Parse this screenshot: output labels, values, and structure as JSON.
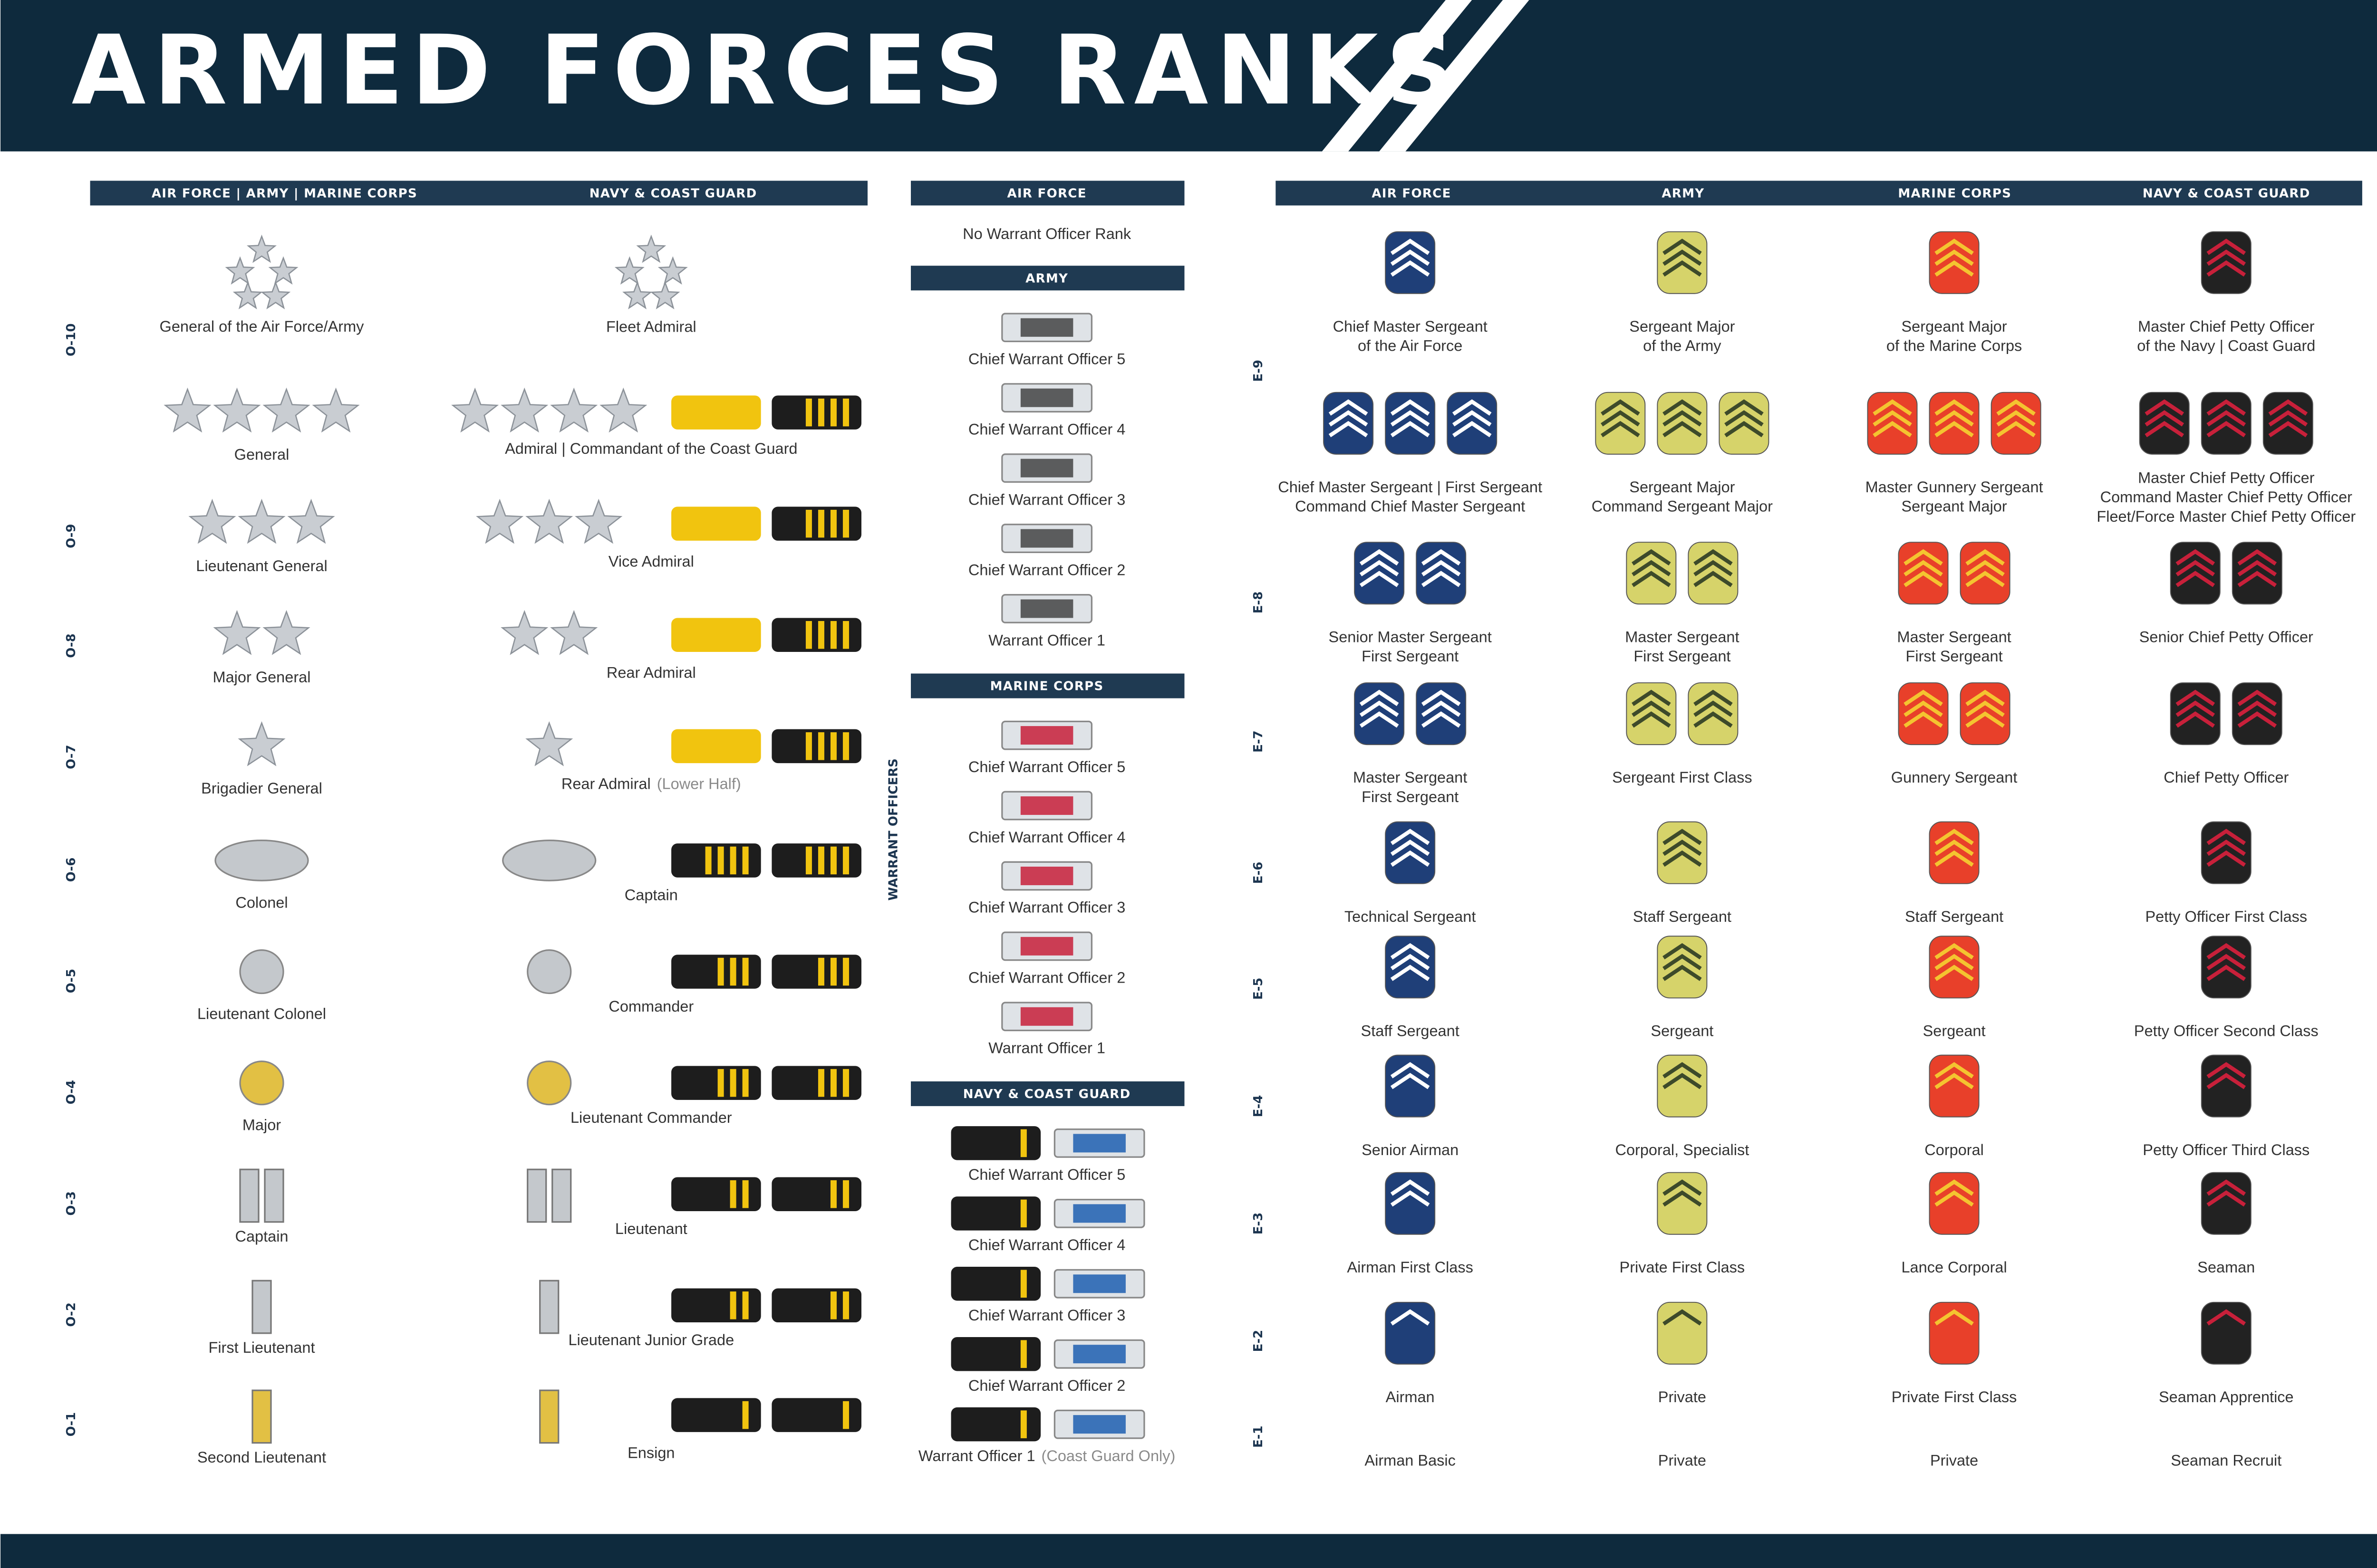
{
  "header": {
    "title": "ARMED FORCES RANKS"
  },
  "officers": {
    "columns": [
      "AIR FORCE | ARMY | MARINE CORPS",
      "NAVY & COAST GUARD"
    ],
    "rows": [
      {
        "grade": "O-10",
        "left": "General of the Air Force/Army",
        "right": "Fleet Admiral"
      },
      {
        "left": "General",
        "right": "Admiral | Commandant of the Coast Guard"
      },
      {
        "grade": "O-9",
        "left": "Lieutenant General",
        "right": "Vice Admiral"
      },
      {
        "grade": "O-8",
        "left": "Major General",
        "right": "Rear Admiral"
      },
      {
        "grade": "O-7",
        "left": "Brigadier General",
        "right": "Rear Admiral",
        "right_note": "(Lower Half)"
      },
      {
        "grade": "O-6",
        "left": "Colonel",
        "right": "Captain"
      },
      {
        "grade": "O-5",
        "left": "Lieutenant Colonel",
        "right": "Commander"
      },
      {
        "grade": "O-4",
        "left": "Major",
        "right": "Lieutenant Commander"
      },
      {
        "grade": "O-3",
        "left": "Captain",
        "right": "Lieutenant"
      },
      {
        "grade": "O-2",
        "left": "First Lieutenant",
        "right": "Lieutenant Junior Grade"
      },
      {
        "grade": "O-1",
        "left": "Second Lieutenant",
        "right": "Ensign"
      }
    ]
  },
  "warrant_officers": {
    "label": "WARRANT OFFICERS",
    "sections": [
      {
        "title": "AIR FORCE",
        "ranks": [
          "No Warrant Officer Rank"
        ]
      },
      {
        "title": "ARMY",
        "ranks": [
          "Chief Warrant Officer 5",
          "Chief Warrant Officer 4",
          "Chief Warrant Officer 3",
          "Chief Warrant Officer 2",
          "Warrant Officer 1"
        ]
      },
      {
        "title": "MARINE CORPS",
        "ranks": [
          "Chief Warrant Officer 5",
          "Chief Warrant Officer 4",
          "Chief Warrant Officer 3",
          "Chief Warrant Officer 2",
          "Warrant Officer 1"
        ]
      },
      {
        "title": "NAVY & COAST GUARD",
        "ranks": [
          "Chief Warrant Officer 5",
          "Chief Warrant Officer 4",
          "Chief Warrant Officer 3",
          "Chief Warrant Officer 2",
          "Warrant Officer 1"
        ],
        "last_note": "(Coast Guard Only)"
      }
    ]
  },
  "enlisted": {
    "columns": [
      "AIR FORCE",
      "ARMY",
      "MARINE CORPS",
      "NAVY & COAST GUARD"
    ],
    "rows": [
      {
        "grade": "E-9",
        "cells": [
          [
            "Chief Master Sergeant",
            "of the Air Force"
          ],
          [
            "Sergeant Major",
            "of the Army"
          ],
          [
            "Sergeant Major",
            "of the Marine Corps"
          ],
          [
            "Master Chief Petty Officer",
            "of the Navy | Coast Guard"
          ]
        ]
      },
      {
        "cells": [
          [
            "Chief Master Sergeant | First Sergeant",
            "Command Chief Master Sergeant"
          ],
          [
            "Sergeant Major",
            "Command Sergeant Major"
          ],
          [
            "Master Gunnery Sergeant",
            "Sergeant Major"
          ],
          [
            "Master Chief Petty Officer",
            "Command Master Chief Petty Officer",
            "Fleet/Force Master Chief Petty Officer"
          ]
        ]
      },
      {
        "grade": "E-8",
        "cells": [
          [
            "Senior Master Sergeant",
            "First Sergeant"
          ],
          [
            "Master Sergeant",
            "First Sergeant"
          ],
          [
            "Master Sergeant",
            "First Sergeant"
          ],
          [
            "Senior Chief Petty Officer"
          ]
        ]
      },
      {
        "grade": "E-7",
        "cells": [
          [
            "Master Sergeant",
            "First Sergeant"
          ],
          [
            "Sergeant First Class"
          ],
          [
            "Gunnery Sergeant"
          ],
          [
            "Chief Petty Officer"
          ]
        ]
      },
      {
        "grade": "E-6",
        "cells": [
          [
            "Technical Sergeant"
          ],
          [
            "Staff Sergeant"
          ],
          [
            "Staff Sergeant"
          ],
          [
            "Petty Officer First Class"
          ]
        ]
      },
      {
        "grade": "E-5",
        "cells": [
          [
            "Staff Sergeant"
          ],
          [
            "Sergeant"
          ],
          [
            "Sergeant"
          ],
          [
            "Petty Officer Second Class"
          ]
        ]
      },
      {
        "grade": "E-4",
        "cells": [
          [
            "Senior Airman"
          ],
          [
            "Corporal, Specialist"
          ],
          [
            "Corporal"
          ],
          [
            "Petty Officer Third Class"
          ]
        ]
      },
      {
        "grade": "E-3",
        "cells": [
          [
            "Airman First Class"
          ],
          [
            "Private First Class"
          ],
          [
            "Lance Corporal"
          ],
          [
            "Seaman"
          ]
        ]
      },
      {
        "grade": "E-2",
        "cells": [
          [
            "Airman"
          ],
          [
            "Private"
          ],
          [
            "Private First Class"
          ],
          [
            "Seaman Apprentice"
          ]
        ]
      },
      {
        "grade": "E-1",
        "cells": [
          [
            "Airman Basic"
          ],
          [
            "Private"
          ],
          [
            "Private"
          ],
          [
            "Seaman Recruit"
          ]
        ]
      }
    ]
  }
}
